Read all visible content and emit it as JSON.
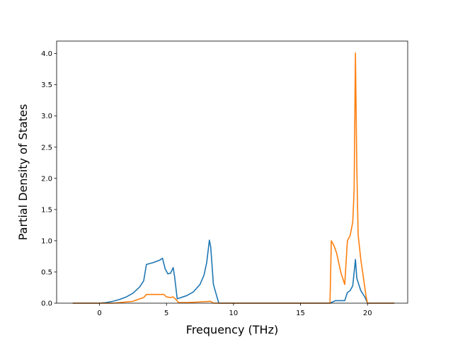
{
  "chart_data": {
    "type": "line",
    "title": "",
    "xlabel": "Frequency (THz)",
    "ylabel": "Partial Density of States",
    "xlim": [
      -3.2,
      23.0
    ],
    "ylim": [
      0,
      4.2
    ],
    "xticks": [
      0,
      5,
      10,
      15,
      20
    ],
    "xtick_labels": [
      "0",
      "5",
      "10",
      "15",
      "20"
    ],
    "yticks": [
      0.0,
      0.5,
      1.0,
      1.5,
      2.0,
      2.5,
      3.0,
      3.5,
      4.0
    ],
    "ytick_labels": [
      "0.0",
      "0.5",
      "1.0",
      "1.5",
      "2.0",
      "2.5",
      "3.0",
      "3.5",
      "4.0"
    ],
    "grid": false,
    "legend": "none",
    "series": [
      {
        "color": "#1f77b4",
        "x": [
          -2.0,
          0.0,
          0.5,
          1.0,
          1.5,
          2.0,
          2.5,
          3.0,
          3.3,
          3.5,
          4.0,
          4.5,
          4.7,
          4.9,
          5.1,
          5.3,
          5.5,
          5.6,
          5.8,
          6.5,
          7.0,
          7.5,
          7.8,
          8.0,
          8.2,
          8.3,
          8.5,
          8.7,
          8.9,
          10.0,
          15.0,
          17.2,
          17.4,
          17.6,
          18.0,
          18.3,
          18.5,
          18.7,
          18.9,
          19.1,
          19.2,
          19.5,
          19.8,
          20.0,
          22.0
        ],
        "y": [
          0.0,
          0.0,
          0.01,
          0.03,
          0.06,
          0.1,
          0.16,
          0.26,
          0.36,
          0.62,
          0.65,
          0.69,
          0.72,
          0.55,
          0.47,
          0.48,
          0.57,
          0.43,
          0.07,
          0.12,
          0.18,
          0.3,
          0.45,
          0.65,
          1.01,
          0.9,
          0.3,
          0.15,
          0.0,
          0.0,
          0.0,
          0.0,
          0.02,
          0.04,
          0.04,
          0.04,
          0.17,
          0.2,
          0.28,
          0.7,
          0.4,
          0.2,
          0.1,
          0.0,
          0.0
        ]
      },
      {
        "color": "#ff7f0e",
        "x": [
          -2.0,
          0.0,
          1.0,
          2.0,
          2.5,
          3.0,
          3.3,
          3.5,
          4.0,
          4.5,
          4.8,
          5.0,
          5.3,
          5.5,
          5.7,
          5.9,
          6.5,
          7.5,
          8.3,
          8.5,
          10.0,
          15.0,
          17.2,
          17.3,
          17.5,
          17.7,
          18.0,
          18.3,
          18.5,
          18.7,
          18.9,
          19.0,
          19.1,
          19.2,
          19.3,
          19.5,
          19.7,
          19.9,
          20.0,
          22.0
        ],
        "y": [
          0.0,
          0.0,
          0.0,
          0.02,
          0.03,
          0.07,
          0.09,
          0.14,
          0.14,
          0.14,
          0.14,
          0.1,
          0.09,
          0.1,
          0.06,
          0.01,
          0.01,
          0.02,
          0.03,
          0.0,
          0.0,
          0.0,
          0.0,
          1.0,
          0.92,
          0.8,
          0.5,
          0.3,
          1.0,
          1.08,
          1.3,
          1.8,
          4.01,
          2.2,
          1.1,
          0.7,
          0.4,
          0.1,
          0.0,
          0.0
        ]
      }
    ]
  }
}
